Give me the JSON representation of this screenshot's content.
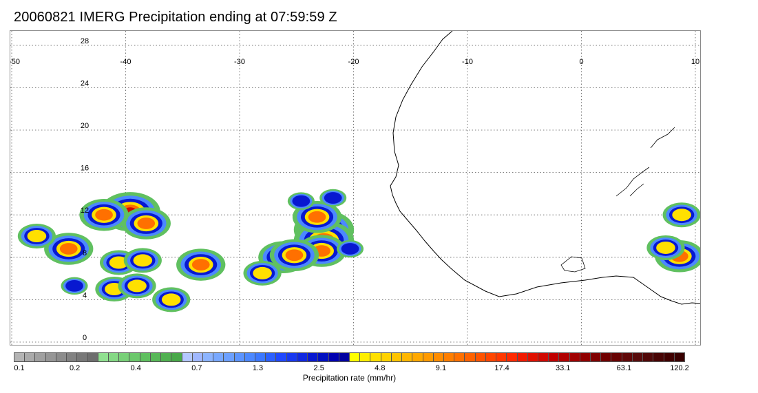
{
  "title": "20060821 IMERG Precipitation ending at 07:59:59 Z",
  "map": {
    "lon_range": [
      -50,
      10
    ],
    "lat_range": [
      0,
      30
    ],
    "lon_ticks": [
      "-50",
      "-40",
      "-30",
      "-20",
      "-10",
      "0",
      "10"
    ],
    "lat_ticks": [
      "28",
      "24",
      "20",
      "16",
      "12",
      "8",
      "4",
      "0"
    ],
    "gridlines": "dotted"
  },
  "colorbar": {
    "caption": "Precipitation rate (mm/hr)",
    "labels": [
      "0.1",
      "0.2",
      "0.4",
      "0.7",
      "1.3",
      "2.5",
      "4.8",
      "9.1",
      "17.4",
      "33.1",
      "63.1",
      "120.2"
    ],
    "colors": [
      "#b4b4b4",
      "#aaaaaa",
      "#a0a0a0",
      "#969696",
      "#8c8c8c",
      "#828282",
      "#787878",
      "#6e6e6e",
      "#90e090",
      "#84d884",
      "#78d078",
      "#6cc86c",
      "#60c060",
      "#58b858",
      "#50b050",
      "#48a848",
      "#b4c8ff",
      "#a0b8ff",
      "#8cb4ff",
      "#78a8ff",
      "#6ca0ff",
      "#5c94ff",
      "#4c88ff",
      "#3c78ff",
      "#2c60ff",
      "#2048ff",
      "#1838f0",
      "#1028e0",
      "#0818d0",
      "#0010c0",
      "#0000b0",
      "#0000a0",
      "#ffff00",
      "#ffee00",
      "#ffe000",
      "#ffd200",
      "#ffc400",
      "#ffb600",
      "#ffa800",
      "#ff9a00",
      "#ff8c00",
      "#ff7e00",
      "#ff7000",
      "#ff6200",
      "#ff5400",
      "#ff4600",
      "#ff3800",
      "#ff2a00",
      "#f01a00",
      "#e01000",
      "#d00800",
      "#c00000",
      "#b00000",
      "#a00000",
      "#900000",
      "#800000",
      "#700000",
      "#680404",
      "#600808",
      "#580c0c",
      "#500808",
      "#480404",
      "#400000",
      "#380000"
    ]
  },
  "rain_cells": [
    {
      "lon": -22.6,
      "lat": 10.6,
      "intensity": 4
    },
    {
      "lon": -22.6,
      "lat": 9.6,
      "intensity": 4
    },
    {
      "lon": -22.8,
      "lat": 8.6,
      "intensity": 3
    },
    {
      "lon": -23.2,
      "lat": 11.8,
      "intensity": 3
    },
    {
      "lon": -26.2,
      "lat": 8.0,
      "intensity": 3
    },
    {
      "lon": -25.2,
      "lat": 8.2,
      "intensity": 3
    },
    {
      "lon": -33.4,
      "lat": 7.3,
      "intensity": 3
    },
    {
      "lon": -39.6,
      "lat": 12.3,
      "intensity": 4
    },
    {
      "lon": -38.2,
      "lat": 11.2,
      "intensity": 3
    },
    {
      "lon": -41.9,
      "lat": 12.0,
      "intensity": 3
    },
    {
      "lon": -45.0,
      "lat": 8.8,
      "intensity": 3
    },
    {
      "lon": -40.6,
      "lat": 7.5,
      "intensity": 2
    },
    {
      "lon": -38.5,
      "lat": 7.7,
      "intensity": 2
    },
    {
      "lon": -41.0,
      "lat": 5.0,
      "intensity": 2
    },
    {
      "lon": -39.0,
      "lat": 5.3,
      "intensity": 2
    },
    {
      "lon": -47.8,
      "lat": 10.0,
      "intensity": 2
    },
    {
      "lon": -28.0,
      "lat": 6.5,
      "intensity": 2
    },
    {
      "lon": 8.8,
      "lat": 12.0,
      "intensity": 2
    },
    {
      "lon": 8.6,
      "lat": 8.1,
      "intensity": 3
    },
    {
      "lon": 7.4,
      "lat": 8.9,
      "intensity": 2
    },
    {
      "lon": -24.6,
      "lat": 13.3,
      "intensity": 1
    },
    {
      "lon": -21.8,
      "lat": 13.6,
      "intensity": 1
    },
    {
      "lon": -20.3,
      "lat": 8.8,
      "intensity": 1
    },
    {
      "lon": -36.0,
      "lat": 4.0,
      "intensity": 2
    },
    {
      "lon": -44.5,
      "lat": 5.3,
      "intensity": 1
    }
  ]
}
